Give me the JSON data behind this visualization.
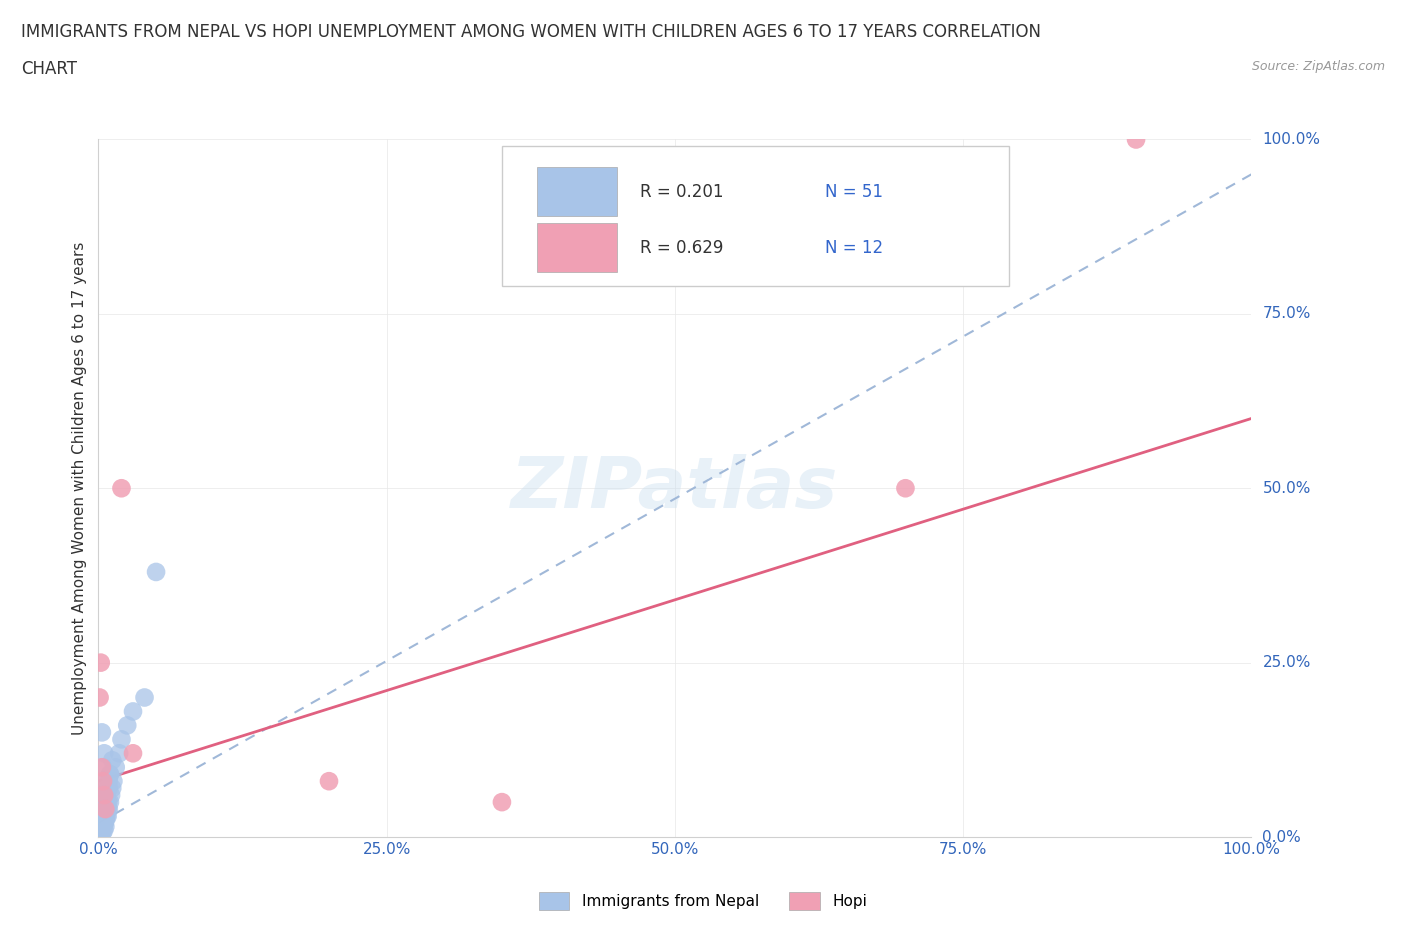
{
  "title_line1": "IMMIGRANTS FROM NEPAL VS HOPI UNEMPLOYMENT AMONG WOMEN WITH CHILDREN AGES 6 TO 17 YEARS CORRELATION",
  "title_line2": "CHART",
  "source": "Source: ZipAtlas.com",
  "ylabel": "Unemployment Among Women with Children Ages 6 to 17 years",
  "x_ticks": [
    0,
    25,
    50,
    75,
    100
  ],
  "y_ticks": [
    0,
    25,
    50,
    75,
    100
  ],
  "nepal_R": "0.201",
  "nepal_N": "51",
  "hopi_R": "0.629",
  "hopi_N": "12",
  "nepal_color": "#a8c4e8",
  "hopi_color": "#f0a0b4",
  "nepal_trend_color": "#a0b8d8",
  "hopi_trend_color": "#e06080",
  "watermark": "ZIPatlas",
  "nepal_x": [
    0.1,
    0.15,
    0.2,
    0.25,
    0.3,
    0.3,
    0.35,
    0.35,
    0.4,
    0.4,
    0.45,
    0.45,
    0.5,
    0.5,
    0.5,
    0.55,
    0.55,
    0.6,
    0.6,
    0.6,
    0.65,
    0.65,
    0.7,
    0.7,
    0.75,
    0.8,
    0.8,
    0.85,
    0.9,
    0.9,
    1.0,
    1.0,
    1.1,
    1.2,
    1.3,
    1.5,
    1.8,
    2.0,
    2.5,
    3.0,
    4.0,
    5.0,
    0.3,
    0.4,
    0.5,
    0.6,
    0.7,
    0.8,
    0.9,
    1.0,
    1.2
  ],
  "nepal_y": [
    0.5,
    1.0,
    0.3,
    2.0,
    1.0,
    3.0,
    0.5,
    2.5,
    1.5,
    4.0,
    2.0,
    3.5,
    1.0,
    3.0,
    5.0,
    2.0,
    4.5,
    1.5,
    3.5,
    6.0,
    2.5,
    5.0,
    3.0,
    6.5,
    4.0,
    3.0,
    7.0,
    5.0,
    4.0,
    8.0,
    5.0,
    9.0,
    6.0,
    7.0,
    8.0,
    10.0,
    12.0,
    14.0,
    16.0,
    18.0,
    20.0,
    38.0,
    15.0,
    10.0,
    12.0,
    8.0,
    6.0,
    4.0,
    7.0,
    9.0,
    11.0
  ],
  "hopi_x": [
    0.1,
    0.2,
    0.3,
    0.4,
    0.5,
    0.6,
    2.0,
    3.0,
    20.0,
    35.0,
    70.0,
    90.0
  ],
  "hopi_y": [
    20.0,
    25.0,
    10.0,
    8.0,
    6.0,
    4.0,
    50.0,
    12.0,
    8.0,
    5.0,
    50.0,
    100.0
  ],
  "nepal_trendline_x0": 0,
  "nepal_trendline_y0": 2,
  "nepal_trendline_x1": 100,
  "nepal_trendline_y1": 95,
  "hopi_trendline_x0": 0,
  "hopi_trendline_y0": 8,
  "hopi_trendline_x1": 100,
  "hopi_trendline_y1": 60
}
